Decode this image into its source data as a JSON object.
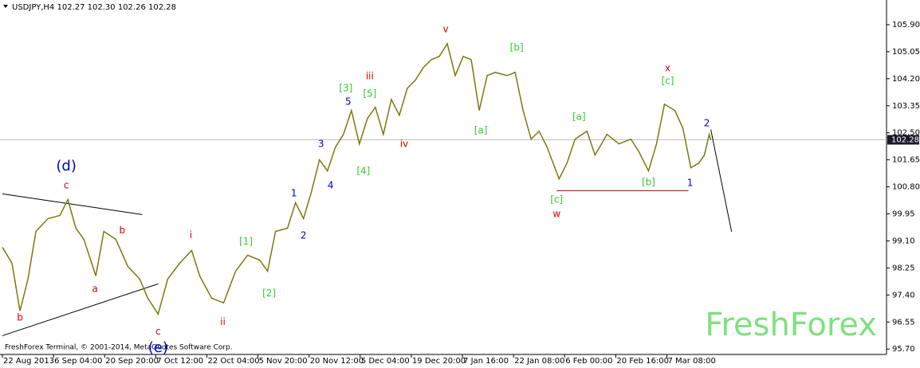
{
  "chart_data": {
    "type": "line",
    "title": "USDJPY,H4  102.27 102.30 102.26 102.28",
    "footer": "FreshForex Terminal, © 2001-2014, MetaQuotes Software Corp.",
    "watermark": "FreshForex",
    "last_price": {
      "value": 102.28,
      "label": "102.28"
    },
    "series": [
      {
        "name": "USDJPY",
        "color": "#7a7a10",
        "x": [
          0,
          12,
          22,
          32,
          42,
          57,
          72,
          82,
          92,
          102,
          117,
          127,
          142,
          157,
          172,
          182,
          195,
          207,
          222,
          237,
          247,
          262,
          277,
          292,
          307,
          322,
          332,
          342,
          357,
          367,
          377,
          387,
          397,
          407,
          417,
          427,
          437,
          447,
          457,
          467,
          477,
          487,
          497,
          507,
          517,
          527,
          537,
          547,
          557,
          567,
          577,
          587,
          597,
          607,
          617,
          632,
          642,
          652,
          662,
          672,
          682,
          697,
          707,
          717,
          732,
          742,
          757,
          772,
          787,
          797,
          809,
          819,
          829,
          842,
          852,
          862,
          872,
          879,
          885,
          887
        ],
        "values": [
          98.9,
          98.4,
          96.9,
          97.9,
          99.4,
          99.8,
          99.9,
          100.4,
          99.5,
          99.15,
          98.0,
          99.4,
          99.15,
          98.3,
          97.9,
          97.3,
          96.8,
          97.9,
          98.4,
          98.8,
          98.0,
          97.3,
          97.15,
          98.15,
          98.65,
          98.5,
          98.15,
          99.4,
          99.5,
          100.3,
          99.8,
          100.65,
          101.65,
          101.3,
          102.05,
          102.45,
          103.2,
          102.15,
          102.95,
          103.3,
          102.45,
          103.55,
          103.05,
          103.9,
          104.15,
          104.55,
          104.8,
          104.9,
          105.3,
          104.3,
          104.9,
          104.8,
          103.2,
          104.3,
          104.4,
          104.3,
          104.4,
          103.2,
          102.3,
          102.55,
          102.05,
          101.05,
          101.55,
          102.3,
          102.55,
          101.8,
          102.45,
          102.15,
          102.3,
          101.9,
          101.3,
          102.15,
          103.4,
          103.2,
          102.65,
          101.4,
          101.55,
          101.8,
          102.45,
          102.28
        ]
      }
    ],
    "xlim": [
      -3,
      1107
    ],
    "xticks": [
      {
        "value": 0,
        "label": "22 Aug 2013"
      },
      {
        "value": 64,
        "label": "6 Sep 04:00"
      },
      {
        "value": 128,
        "label": "20 Sep 20:00"
      },
      {
        "value": 192,
        "label": "7 Oct 12:00"
      },
      {
        "value": 256,
        "label": "22 Oct 04:00"
      },
      {
        "value": 320,
        "label": "5 Nov 20:00"
      },
      {
        "value": 384,
        "label": "20 Nov 12:00"
      },
      {
        "value": 448,
        "label": "5 Dec 04:00"
      },
      {
        "value": 512,
        "label": "19 Dec 20:00"
      },
      {
        "value": 576,
        "label": "7 Jan 16:00"
      },
      {
        "value": 640,
        "label": "22 Jan 08:00"
      },
      {
        "value": 704,
        "label": "6 Feb 00:00"
      },
      {
        "value": 768,
        "label": "20 Feb 16:00"
      },
      {
        "value": 832,
        "label": "7 Mar 08:00"
      }
    ],
    "ylim": [
      95.53,
      106.6
    ],
    "yticks": [
      {
        "value": 95.7,
        "label": "95.70"
      },
      96.55,
      {
        "value": 97.4,
        "label": "97.40"
      },
      98.25,
      {
        "value": 99.1,
        "label": "99.10"
      },
      99.95,
      {
        "value": 100.8,
        "label": "100.80"
      },
      101.65,
      {
        "value": 102.5,
        "label": "102.50"
      },
      103.35,
      {
        "value": 104.2,
        "label": "104.20"
      },
      105.05,
      {
        "value": 105.9,
        "label": "105.90"
      }
    ],
    "trend_lines": [
      {
        "x": [
          0,
          175
        ],
        "y": [
          100.58,
          99.93
        ],
        "color": "#000000"
      },
      {
        "x": [
          0,
          195
        ],
        "y": [
          96.12,
          97.75
        ],
        "color": "#000000"
      },
      {
        "x": [
          694,
          859
        ],
        "y": [
          100.68,
          100.68
        ],
        "color": "#a00000"
      },
      {
        "x": [
          887,
          913
        ],
        "y": [
          102.6,
          99.39
        ],
        "color": "#000000"
      }
    ],
    "annotations": [
      {
        "text": "(d)",
        "x": 80,
        "y": 101.44,
        "color": "#0000cc"
      },
      {
        "text": "c",
        "x": 80,
        "y": 100.84,
        "color": "#dd0000"
      },
      {
        "text": "b",
        "x": 150,
        "y": 99.43,
        "color": "#dd0000"
      },
      {
        "text": "a",
        "x": 116,
        "y": 97.58,
        "color": "#dd0000"
      },
      {
        "text": "b",
        "x": 22,
        "y": 96.68,
        "color": "#dd0000"
      },
      {
        "text": "c",
        "x": 195,
        "y": 96.25,
        "color": "#dd0000"
      },
      {
        "text": "(e)",
        "x": 195,
        "y": 95.73,
        "color": "#0000cc"
      },
      {
        "text": "i",
        "x": 236,
        "y": 99.28,
        "color": "#dd0000"
      },
      {
        "text": "ii",
        "x": 276,
        "y": 96.55,
        "color": "#dd0000"
      },
      {
        "text": "[1]",
        "x": 305,
        "y": 99.08,
        "color": "#33cc33"
      },
      {
        "text": "[2]",
        "x": 334,
        "y": 97.45,
        "color": "#33cc33"
      },
      {
        "text": "1",
        "x": 365,
        "y": 100.59,
        "color": "#0000cc"
      },
      {
        "text": "2",
        "x": 377,
        "y": 99.26,
        "color": "#0000cc"
      },
      {
        "text": "3",
        "x": 399,
        "y": 102.14,
        "color": "#0000cc"
      },
      {
        "text": "4",
        "x": 411,
        "y": 100.84,
        "color": "#0000cc"
      },
      {
        "text": "5",
        "x": 433,
        "y": 103.47,
        "color": "#0000cc"
      },
      {
        "text": "[3]",
        "x": 430,
        "y": 103.9,
        "color": "#33cc33"
      },
      {
        "text": "[4]",
        "x": 452,
        "y": 101.29,
        "color": "#33cc33"
      },
      {
        "text": "[5]",
        "x": 460,
        "y": 103.72,
        "color": "#33cc33"
      },
      {
        "text": "iii",
        "x": 460,
        "y": 104.27,
        "color": "#dd0000"
      },
      {
        "text": "iv",
        "x": 503,
        "y": 102.14,
        "color": "#dd0000"
      },
      {
        "text": "v",
        "x": 555,
        "y": 105.75,
        "color": "#dd0000"
      },
      {
        "text": "[a]",
        "x": 599,
        "y": 102.57,
        "color": "#33cc33"
      },
      {
        "text": "[b]",
        "x": 644,
        "y": 105.17,
        "color": "#33cc33"
      },
      {
        "text": "[c]",
        "x": 694,
        "y": 100.39,
        "color": "#33cc33"
      },
      {
        "text": "w",
        "x": 694,
        "y": 99.94,
        "color": "#dd0000"
      },
      {
        "text": "[a]",
        "x": 722,
        "y": 102.99,
        "color": "#33cc33"
      },
      {
        "text": "[b]",
        "x": 809,
        "y": 100.94,
        "color": "#33cc33"
      },
      {
        "text": "x",
        "x": 833,
        "y": 104.52,
        "color": "#dd0000"
      },
      {
        "text": "[c]",
        "x": 833,
        "y": 104.12,
        "color": "#33cc33"
      },
      {
        "text": "1",
        "x": 861,
        "y": 100.91,
        "color": "#0000cc"
      },
      {
        "text": "2",
        "x": 882,
        "y": 102.79,
        "color": "#0000cc"
      }
    ]
  }
}
